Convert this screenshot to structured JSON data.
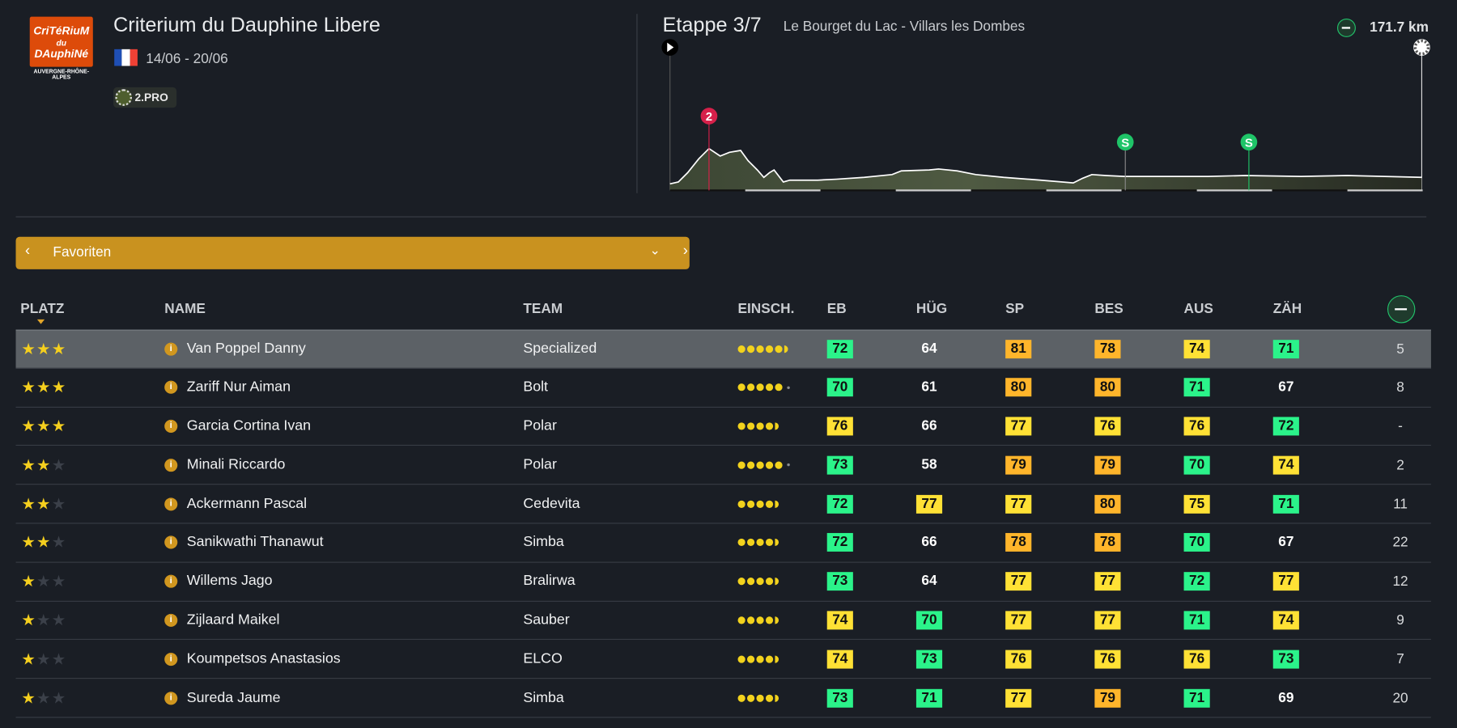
{
  "race": {
    "logo_text": [
      "CriTéRiuM",
      "du",
      "DAuphiNé"
    ],
    "logo_subtext": "AUVERGNE-RHÔNE-ALPES",
    "title": "Criterium du Dauphine Libere",
    "country_flag": "france-flag",
    "dates": "14/06 - 20/06",
    "category": "2.PRO"
  },
  "stage": {
    "label": "Etappe 3/7",
    "route": "Le Bourget du Lac - Villars les Dombes",
    "distance": "171.7 km",
    "profile_type_icon": "flat-stage-icon",
    "markers": [
      {
        "type": "climb",
        "label": "2",
        "color": "#d6204a"
      },
      {
        "type": "sprint",
        "label": "S",
        "color": "#1fc468"
      },
      {
        "type": "sprint",
        "label": "S",
        "color": "#1fc468"
      }
    ]
  },
  "filter": {
    "prev": "‹",
    "label": "Favoriten",
    "dropdown": "⌄",
    "next": "›"
  },
  "table": {
    "headers": {
      "platz": "PLATZ",
      "name": "NAME",
      "team": "TEAM",
      "einsch": "EINSCH.",
      "eb": "EB",
      "hug": "HÜG",
      "sp": "SP",
      "bes": "BES",
      "aus": "AUS",
      "zah": "ZÄH"
    },
    "colors": {
      "green": "#2bf38a",
      "yellow": "#ffe135",
      "orange": "#ffb52b",
      "accent": "#c9921f"
    },
    "rows": [
      {
        "stars": 3,
        "name": "Van Poppel Danny",
        "team": "Specialized",
        "einsch": 5.8,
        "eb": 72,
        "hug": 64,
        "sp": 81,
        "bes": 78,
        "aus": 74,
        "zah": 71,
        "last": "5",
        "selected": true
      },
      {
        "stars": 3,
        "name": "Zariff Nur Aiman",
        "team": "Bolt",
        "einsch": 5.1,
        "eb": 70,
        "hug": 61,
        "sp": 80,
        "bes": 80,
        "aus": 71,
        "zah": 67,
        "last": "8"
      },
      {
        "stars": 3,
        "name": "Garcia Cortina Ivan",
        "team": "Polar",
        "einsch": 4.6,
        "eb": 76,
        "hug": 66,
        "sp": 77,
        "bes": 76,
        "aus": 76,
        "zah": 72,
        "last": "-"
      },
      {
        "stars": 2,
        "name": "Minali Riccardo",
        "team": "Polar",
        "einsch": 5.1,
        "eb": 73,
        "hug": 58,
        "sp": 79,
        "bes": 79,
        "aus": 70,
        "zah": 74,
        "last": "2"
      },
      {
        "stars": 2,
        "name": "Ackermann Pascal",
        "team": "Cedevita",
        "einsch": 4.6,
        "eb": 72,
        "hug": 77,
        "sp": 77,
        "bes": 80,
        "aus": 75,
        "zah": 71,
        "last": "11"
      },
      {
        "stars": 2,
        "name": "Sanikwathi Thanawut",
        "team": "Simba",
        "einsch": 4.6,
        "eb": 72,
        "hug": 66,
        "sp": 78,
        "bes": 78,
        "aus": 70,
        "zah": 67,
        "last": "22"
      },
      {
        "stars": 1,
        "name": "Willems Jago",
        "team": "Bralirwa",
        "einsch": 4.6,
        "eb": 73,
        "hug": 64,
        "sp": 77,
        "bes": 77,
        "aus": 72,
        "zah": 77,
        "last": "12"
      },
      {
        "stars": 1,
        "name": "Zijlaard Maikel",
        "team": "Sauber",
        "einsch": 4.6,
        "eb": 74,
        "hug": 70,
        "sp": 77,
        "bes": 77,
        "aus": 71,
        "zah": 74,
        "last": "9"
      },
      {
        "stars": 1,
        "name": "Koumpetsos Anastasios",
        "team": "ELCO",
        "einsch": 4.6,
        "eb": 74,
        "hug": 73,
        "sp": 76,
        "bes": 76,
        "aus": 76,
        "zah": 73,
        "last": "7"
      },
      {
        "stars": 1,
        "name": "Sureda Jaume",
        "team": "Simba",
        "einsch": 4.6,
        "eb": 73,
        "hug": 71,
        "sp": 77,
        "bes": 79,
        "aus": 71,
        "zah": 69,
        "last": "20"
      }
    ]
  }
}
